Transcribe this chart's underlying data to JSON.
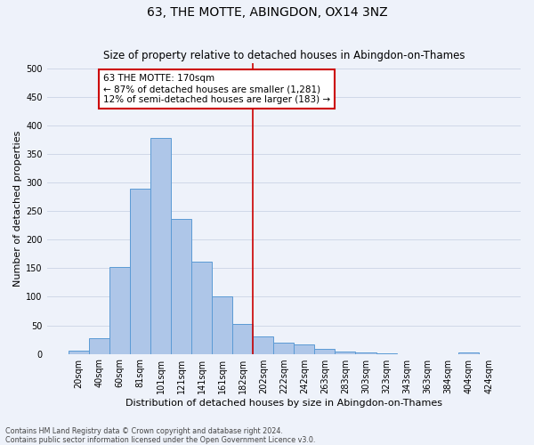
{
  "title": "63, THE MOTTE, ABINGDON, OX14 3NZ",
  "subtitle": "Size of property relative to detached houses in Abingdon-on-Thames",
  "xlabel": "Distribution of detached houses by size in Abingdon-on-Thames",
  "ylabel": "Number of detached properties",
  "footer_line1": "Contains HM Land Registry data © Crown copyright and database right 2024.",
  "footer_line2": "Contains public sector information licensed under the Open Government Licence v3.0.",
  "bar_labels": [
    "20sqm",
    "40sqm",
    "60sqm",
    "81sqm",
    "101sqm",
    "121sqm",
    "141sqm",
    "161sqm",
    "182sqm",
    "202sqm",
    "222sqm",
    "242sqm",
    "263sqm",
    "283sqm",
    "303sqm",
    "323sqm",
    "343sqm",
    "363sqm",
    "384sqm",
    "404sqm",
    "424sqm"
  ],
  "bar_values": [
    5,
    28,
    152,
    290,
    378,
    237,
    162,
    100,
    53,
    30,
    20,
    17,
    8,
    4,
    3,
    1,
    0,
    0,
    0,
    3,
    0
  ],
  "bar_color": "#aec6e8",
  "bar_edge_color": "#5b9bd5",
  "grid_color": "#d0d8e8",
  "background_color": "#eef2fa",
  "vline_x": 8.5,
  "vline_color": "#cc0000",
  "annotation_text": "63 THE MOTTE: 170sqm\n← 87% of detached houses are smaller (1,281)\n12% of semi-detached houses are larger (183) →",
  "annotation_box_color": "#ffffff",
  "annotation_box_edge_color": "#cc0000",
  "ylim": [
    0,
    510
  ],
  "yticks": [
    0,
    50,
    100,
    150,
    200,
    250,
    300,
    350,
    400,
    450,
    500
  ],
  "title_fontsize": 10,
  "subtitle_fontsize": 8.5,
  "xlabel_fontsize": 8,
  "ylabel_fontsize": 8,
  "tick_fontsize": 7,
  "annotation_fontsize": 7.5,
  "footer_fontsize": 5.8
}
